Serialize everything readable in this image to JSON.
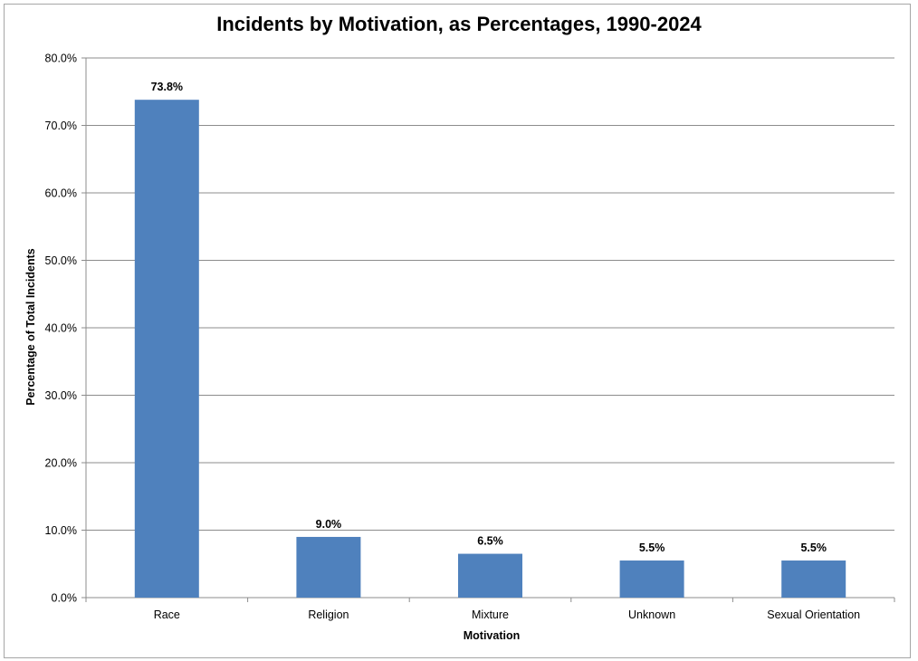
{
  "chart_data": {
    "type": "bar",
    "title": "Incidents by Motivation, as Percentages, 1990-2024",
    "xlabel": "Motivation",
    "ylabel": "Percentage of Total Incidents",
    "categories": [
      "Race",
      "Religion",
      "Mixture",
      "Unknown",
      "Sexual Orientation"
    ],
    "values": [
      73.8,
      9.0,
      6.5,
      5.5,
      5.5
    ],
    "data_labels": [
      "73.8%",
      "9.0%",
      "6.5%",
      "5.5%",
      "5.5%"
    ],
    "ylim": [
      0,
      80
    ],
    "yticks": [
      0,
      10,
      20,
      30,
      40,
      50,
      60,
      70,
      80
    ],
    "ytick_labels": [
      "0.0%",
      "10.0%",
      "20.0%",
      "30.0%",
      "40.0%",
      "50.0%",
      "60.0%",
      "70.0%",
      "80.0%"
    ],
    "grid": true,
    "legend": "none",
    "bar_color": "#4f81bd"
  }
}
